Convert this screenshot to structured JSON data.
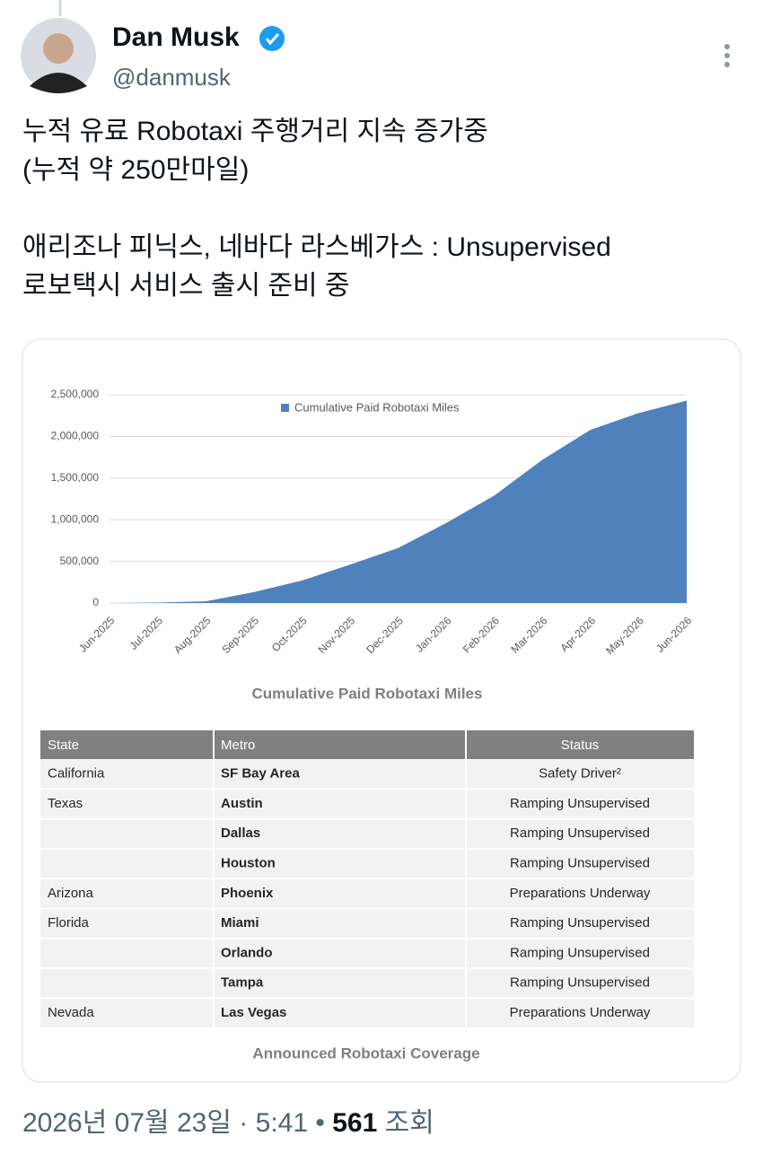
{
  "author": {
    "name": "Dan Musk",
    "handle": "@danmusk"
  },
  "tweet": {
    "paragraphs": [
      [
        "누적 유료 Robotaxi 주행거리 지속 증가중",
        "(누적 약 250만마일)"
      ],
      [
        "애리조나 피닉스, 네바다 라스베가스 : Unsupervised",
        "로보택시 서비스 출시 준비 중"
      ]
    ]
  },
  "chart_data": {
    "type": "area",
    "caption": "Cumulative Paid Robotaxi Miles",
    "categories": [
      "Jun-2025",
      "Jul-2025",
      "Aug-2025",
      "Sep-2025",
      "Oct-2025",
      "Nov-2025",
      "Dec-2025",
      "Jan-2026",
      "Feb-2026",
      "Mar-2026",
      "Apr-2026",
      "May-2026",
      "Jun-2026"
    ],
    "series": [
      {
        "name": "Cumulative Paid Robotaxi Miles",
        "color": "#4f81bd",
        "values": [
          0,
          5000,
          20000,
          130000,
          270000,
          460000,
          660000,
          960000,
          1290000,
          1720000,
          2080000,
          2280000,
          2430000
        ]
      }
    ],
    "ylim": [
      0,
      2500000
    ],
    "yticks": [
      0,
      {
        "value": 500000,
        "label": "500,000"
      },
      {
        "value": 1000000,
        "label": "1,000,000"
      },
      {
        "value": 1500000,
        "label": "1,500,000"
      },
      {
        "value": 2000000,
        "label": "2,000,000"
      },
      {
        "value": 2500000,
        "label": "2,500,000"
      }
    ],
    "grid": true,
    "legend": "top"
  },
  "table": {
    "caption": "Announced Robotaxi Coverage",
    "header": [
      "State",
      "Metro",
      "Status"
    ],
    "rows": [
      [
        "California",
        "SF Bay Area",
        "Safety Driver²"
      ],
      [
        "Texas",
        "Austin",
        "Ramping Unsupervised"
      ],
      [
        null,
        "Dallas",
        "Ramping Unsupervised"
      ],
      [
        null,
        "Houston",
        "Ramping Unsupervised"
      ],
      [
        "Arizona",
        "Phoenix",
        "Preparations Underway"
      ],
      [
        "Florida",
        "Miami",
        "Ramping Unsupervised"
      ],
      [
        null,
        "Orlando",
        "Ramping Unsupervised"
      ],
      [
        null,
        "Tampa",
        "Ramping Unsupervised"
      ],
      [
        "Nevada",
        "Las Vegas",
        "Preparations Underway"
      ]
    ]
  },
  "footer": {
    "date": "2026년 07월 23일",
    "sep1": "·",
    "time": "5:41",
    "sep2": "•",
    "views": "561",
    "views_label": "조회"
  }
}
